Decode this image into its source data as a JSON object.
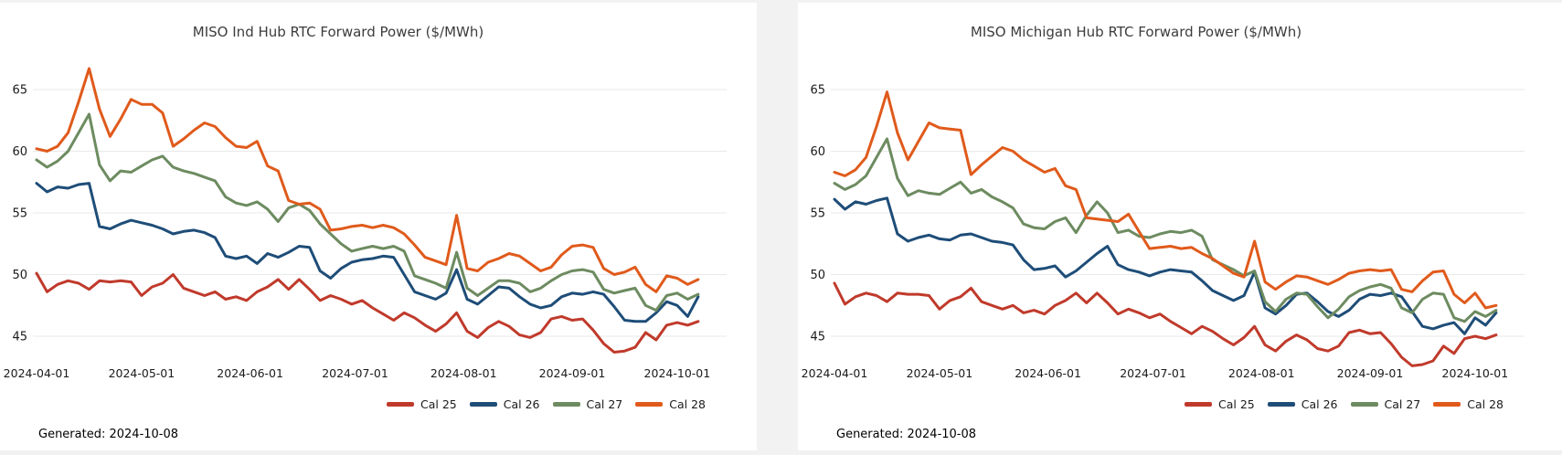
{
  "page": {
    "background_color": "#f2f2f2",
    "card_background_color": "#ffffff",
    "grid_color": "#e9e9e9"
  },
  "generated_label": "Generated: 2024-10-08",
  "chart_data": [
    {
      "type": "line",
      "title": "MISO Ind Hub RTC Forward Power ($/MWh)",
      "xlabel": "",
      "ylabel": "",
      "ylim": [
        42.5,
        67.5
      ],
      "yticks": [
        45,
        50,
        55,
        60,
        65
      ],
      "grid": "horizontal only",
      "legend_position": "bottom-right",
      "x_unit": "days since 2024-04-01",
      "x_step_days": 3,
      "xticks": [
        {
          "label": "2024-04-01",
          "day": 0
        },
        {
          "label": "2024-05-01",
          "day": 30
        },
        {
          "label": "2024-06-01",
          "day": 61
        },
        {
          "label": "2024-07-01",
          "day": 91
        },
        {
          "label": "2024-08-01",
          "day": 122
        },
        {
          "label": "2024-09-01",
          "day": 153
        },
        {
          "label": "2024-10-01",
          "day": 183
        }
      ],
      "series": [
        {
          "name": "Cal 25",
          "color": "#c03a2b",
          "values": [
            50.1,
            48.6,
            49.2,
            49.5,
            49.3,
            48.8,
            49.5,
            49.4,
            49.5,
            49.4,
            48.3,
            49.0,
            49.3,
            50.0,
            48.9,
            48.6,
            48.3,
            48.6,
            48.0,
            48.2,
            47.9,
            48.6,
            49.0,
            49.6,
            48.8,
            49.6,
            48.8,
            47.9,
            48.3,
            48.0,
            47.6,
            47.9,
            47.3,
            46.8,
            46.3,
            46.9,
            46.5,
            45.9,
            45.4,
            46.0,
            46.9,
            45.4,
            44.9,
            45.7,
            46.2,
            45.8,
            45.1,
            44.9,
            45.3,
            46.4,
            46.6,
            46.3,
            46.4,
            45.5,
            44.4,
            43.7,
            43.8,
            44.1,
            45.3,
            44.7,
            45.9,
            46.1,
            45.9,
            46.2
          ]
        },
        {
          "name": "Cal 26",
          "color": "#1e4d78",
          "values": [
            57.4,
            56.7,
            57.1,
            57.0,
            57.3,
            57.4,
            53.9,
            53.7,
            54.1,
            54.4,
            54.2,
            54.0,
            53.7,
            53.3,
            53.5,
            53.6,
            53.4,
            53.0,
            51.5,
            51.3,
            51.5,
            50.9,
            51.7,
            51.4,
            51.8,
            52.3,
            52.2,
            50.3,
            49.7,
            50.5,
            51.0,
            51.2,
            51.3,
            51.5,
            51.4,
            50.0,
            48.6,
            48.3,
            48.0,
            48.5,
            50.4,
            48.0,
            47.6,
            48.3,
            49.0,
            48.9,
            48.2,
            47.6,
            47.3,
            47.5,
            48.2,
            48.5,
            48.4,
            48.6,
            48.4,
            47.4,
            46.3,
            46.2,
            46.2,
            46.9,
            47.8,
            47.5,
            46.6,
            48.2
          ]
        },
        {
          "name": "Cal 27",
          "color": "#6d8b60",
          "values": [
            59.3,
            58.7,
            59.2,
            60.0,
            61.5,
            63.0,
            58.9,
            57.6,
            58.4,
            58.3,
            58.8,
            59.3,
            59.6,
            58.7,
            58.4,
            58.2,
            57.9,
            57.6,
            56.3,
            55.8,
            55.6,
            55.9,
            55.3,
            54.3,
            55.4,
            55.7,
            55.2,
            54.1,
            53.3,
            52.5,
            51.9,
            52.1,
            52.3,
            52.1,
            52.3,
            51.9,
            49.9,
            49.6,
            49.3,
            48.9,
            51.8,
            48.9,
            48.3,
            48.9,
            49.5,
            49.5,
            49.3,
            48.6,
            48.9,
            49.5,
            50.0,
            50.3,
            50.4,
            50.2,
            48.8,
            48.5,
            48.7,
            48.9,
            47.5,
            47.1,
            48.3,
            48.5,
            48.0,
            48.4
          ]
        },
        {
          "name": "Cal 28",
          "color": "#e05a1b",
          "values": [
            60.2,
            60.0,
            60.4,
            61.5,
            64.0,
            66.7,
            63.4,
            61.2,
            62.6,
            64.2,
            63.8,
            63.8,
            63.1,
            60.4,
            61.0,
            61.7,
            62.3,
            62.0,
            61.1,
            60.4,
            60.3,
            60.8,
            58.8,
            58.4,
            56.0,
            55.7,
            55.8,
            55.3,
            53.6,
            53.7,
            53.9,
            54.0,
            53.8,
            54.0,
            53.8,
            53.3,
            52.4,
            51.4,
            51.1,
            50.8,
            54.8,
            50.5,
            50.3,
            51.0,
            51.3,
            51.7,
            51.5,
            50.9,
            50.3,
            50.6,
            51.6,
            52.3,
            52.4,
            52.2,
            50.5,
            50.0,
            50.2,
            50.6,
            49.2,
            48.6,
            49.9,
            49.7,
            49.2,
            49.6
          ]
        }
      ]
    },
    {
      "type": "line",
      "title": "MISO Michigan Hub RTC Forward Power ($/MWh)",
      "xlabel": "",
      "ylabel": "",
      "ylim": [
        42.5,
        67.5
      ],
      "yticks": [
        45,
        50,
        55,
        60,
        65
      ],
      "grid": "horizontal only",
      "legend_position": "bottom-right",
      "x_unit": "days since 2024-04-01",
      "x_step_days": 3,
      "xticks": [
        {
          "label": "2024-04-01",
          "day": 0
        },
        {
          "label": "2024-05-01",
          "day": 30
        },
        {
          "label": "2024-06-01",
          "day": 61
        },
        {
          "label": "2024-07-01",
          "day": 91
        },
        {
          "label": "2024-08-01",
          "day": 122
        },
        {
          "label": "2024-09-01",
          "day": 153
        },
        {
          "label": "2024-10-01",
          "day": 183
        }
      ],
      "series": [
        {
          "name": "Cal 25",
          "color": "#c03a2b",
          "values": [
            49.3,
            47.6,
            48.2,
            48.5,
            48.3,
            47.8,
            48.5,
            48.4,
            48.4,
            48.3,
            47.2,
            47.9,
            48.2,
            48.9,
            47.8,
            47.5,
            47.2,
            47.5,
            46.9,
            47.1,
            46.8,
            47.5,
            47.9,
            48.5,
            47.7,
            48.5,
            47.7,
            46.8,
            47.2,
            46.9,
            46.5,
            46.8,
            46.2,
            45.7,
            45.2,
            45.8,
            45.4,
            44.8,
            44.3,
            44.9,
            45.8,
            44.3,
            43.8,
            44.6,
            45.1,
            44.7,
            44.0,
            43.8,
            44.2,
            45.3,
            45.5,
            45.2,
            45.3,
            44.4,
            43.3,
            42.6,
            42.7,
            43.0,
            44.2,
            43.6,
            44.8,
            45.0,
            44.8,
            45.1
          ]
        },
        {
          "name": "Cal 26",
          "color": "#1e4d78",
          "values": [
            56.1,
            55.3,
            55.9,
            55.7,
            56.0,
            56.2,
            53.3,
            52.7,
            53.0,
            53.2,
            52.9,
            52.8,
            53.2,
            53.3,
            53.0,
            52.7,
            52.6,
            52.4,
            51.2,
            50.4,
            50.5,
            50.7,
            49.8,
            50.3,
            51.0,
            51.7,
            52.3,
            50.8,
            50.4,
            50.2,
            49.9,
            50.2,
            50.4,
            50.3,
            50.2,
            49.5,
            48.7,
            48.3,
            47.9,
            48.3,
            50.2,
            47.3,
            46.8,
            47.5,
            48.4,
            48.5,
            47.8,
            47.0,
            46.6,
            47.1,
            48.0,
            48.4,
            48.3,
            48.5,
            48.2,
            47.0,
            45.8,
            45.6,
            45.9,
            46.1,
            45.2,
            46.5,
            45.9,
            46.9
          ]
        },
        {
          "name": "Cal 27",
          "color": "#6d8b60",
          "values": [
            57.4,
            56.9,
            57.3,
            58.0,
            59.5,
            61.0,
            57.8,
            56.4,
            56.8,
            56.6,
            56.5,
            57.0,
            57.5,
            56.6,
            56.9,
            56.3,
            55.9,
            55.4,
            54.1,
            53.8,
            53.7,
            54.3,
            54.6,
            53.4,
            54.8,
            55.9,
            55.0,
            53.4,
            53.6,
            53.1,
            53.0,
            53.3,
            53.5,
            53.4,
            53.6,
            53.1,
            51.2,
            50.8,
            50.4,
            49.9,
            50.3,
            47.8,
            47.0,
            48.0,
            48.5,
            48.4,
            47.4,
            46.5,
            47.2,
            48.2,
            48.7,
            49.0,
            49.2,
            48.9,
            47.3,
            46.9,
            48.0,
            48.5,
            48.4,
            46.5,
            46.2,
            47.0,
            46.6,
            47.1
          ]
        },
        {
          "name": "Cal 28",
          "color": "#e05a1b",
          "values": [
            58.3,
            58.0,
            58.5,
            59.5,
            62.0,
            64.8,
            61.5,
            59.3,
            60.8,
            62.3,
            61.9,
            61.8,
            61.7,
            58.1,
            58.9,
            59.6,
            60.3,
            60.0,
            59.3,
            58.8,
            58.3,
            58.6,
            57.2,
            56.9,
            54.6,
            54.5,
            54.4,
            54.3,
            54.9,
            53.5,
            52.1,
            52.2,
            52.3,
            52.1,
            52.2,
            51.7,
            51.3,
            50.7,
            50.1,
            49.8,
            52.7,
            49.4,
            48.8,
            49.4,
            49.9,
            49.8,
            49.5,
            49.2,
            49.6,
            50.1,
            50.3,
            50.4,
            50.3,
            50.4,
            48.8,
            48.6,
            49.5,
            50.2,
            50.3,
            48.4,
            47.7,
            48.5,
            47.3,
            47.5
          ]
        }
      ]
    }
  ]
}
